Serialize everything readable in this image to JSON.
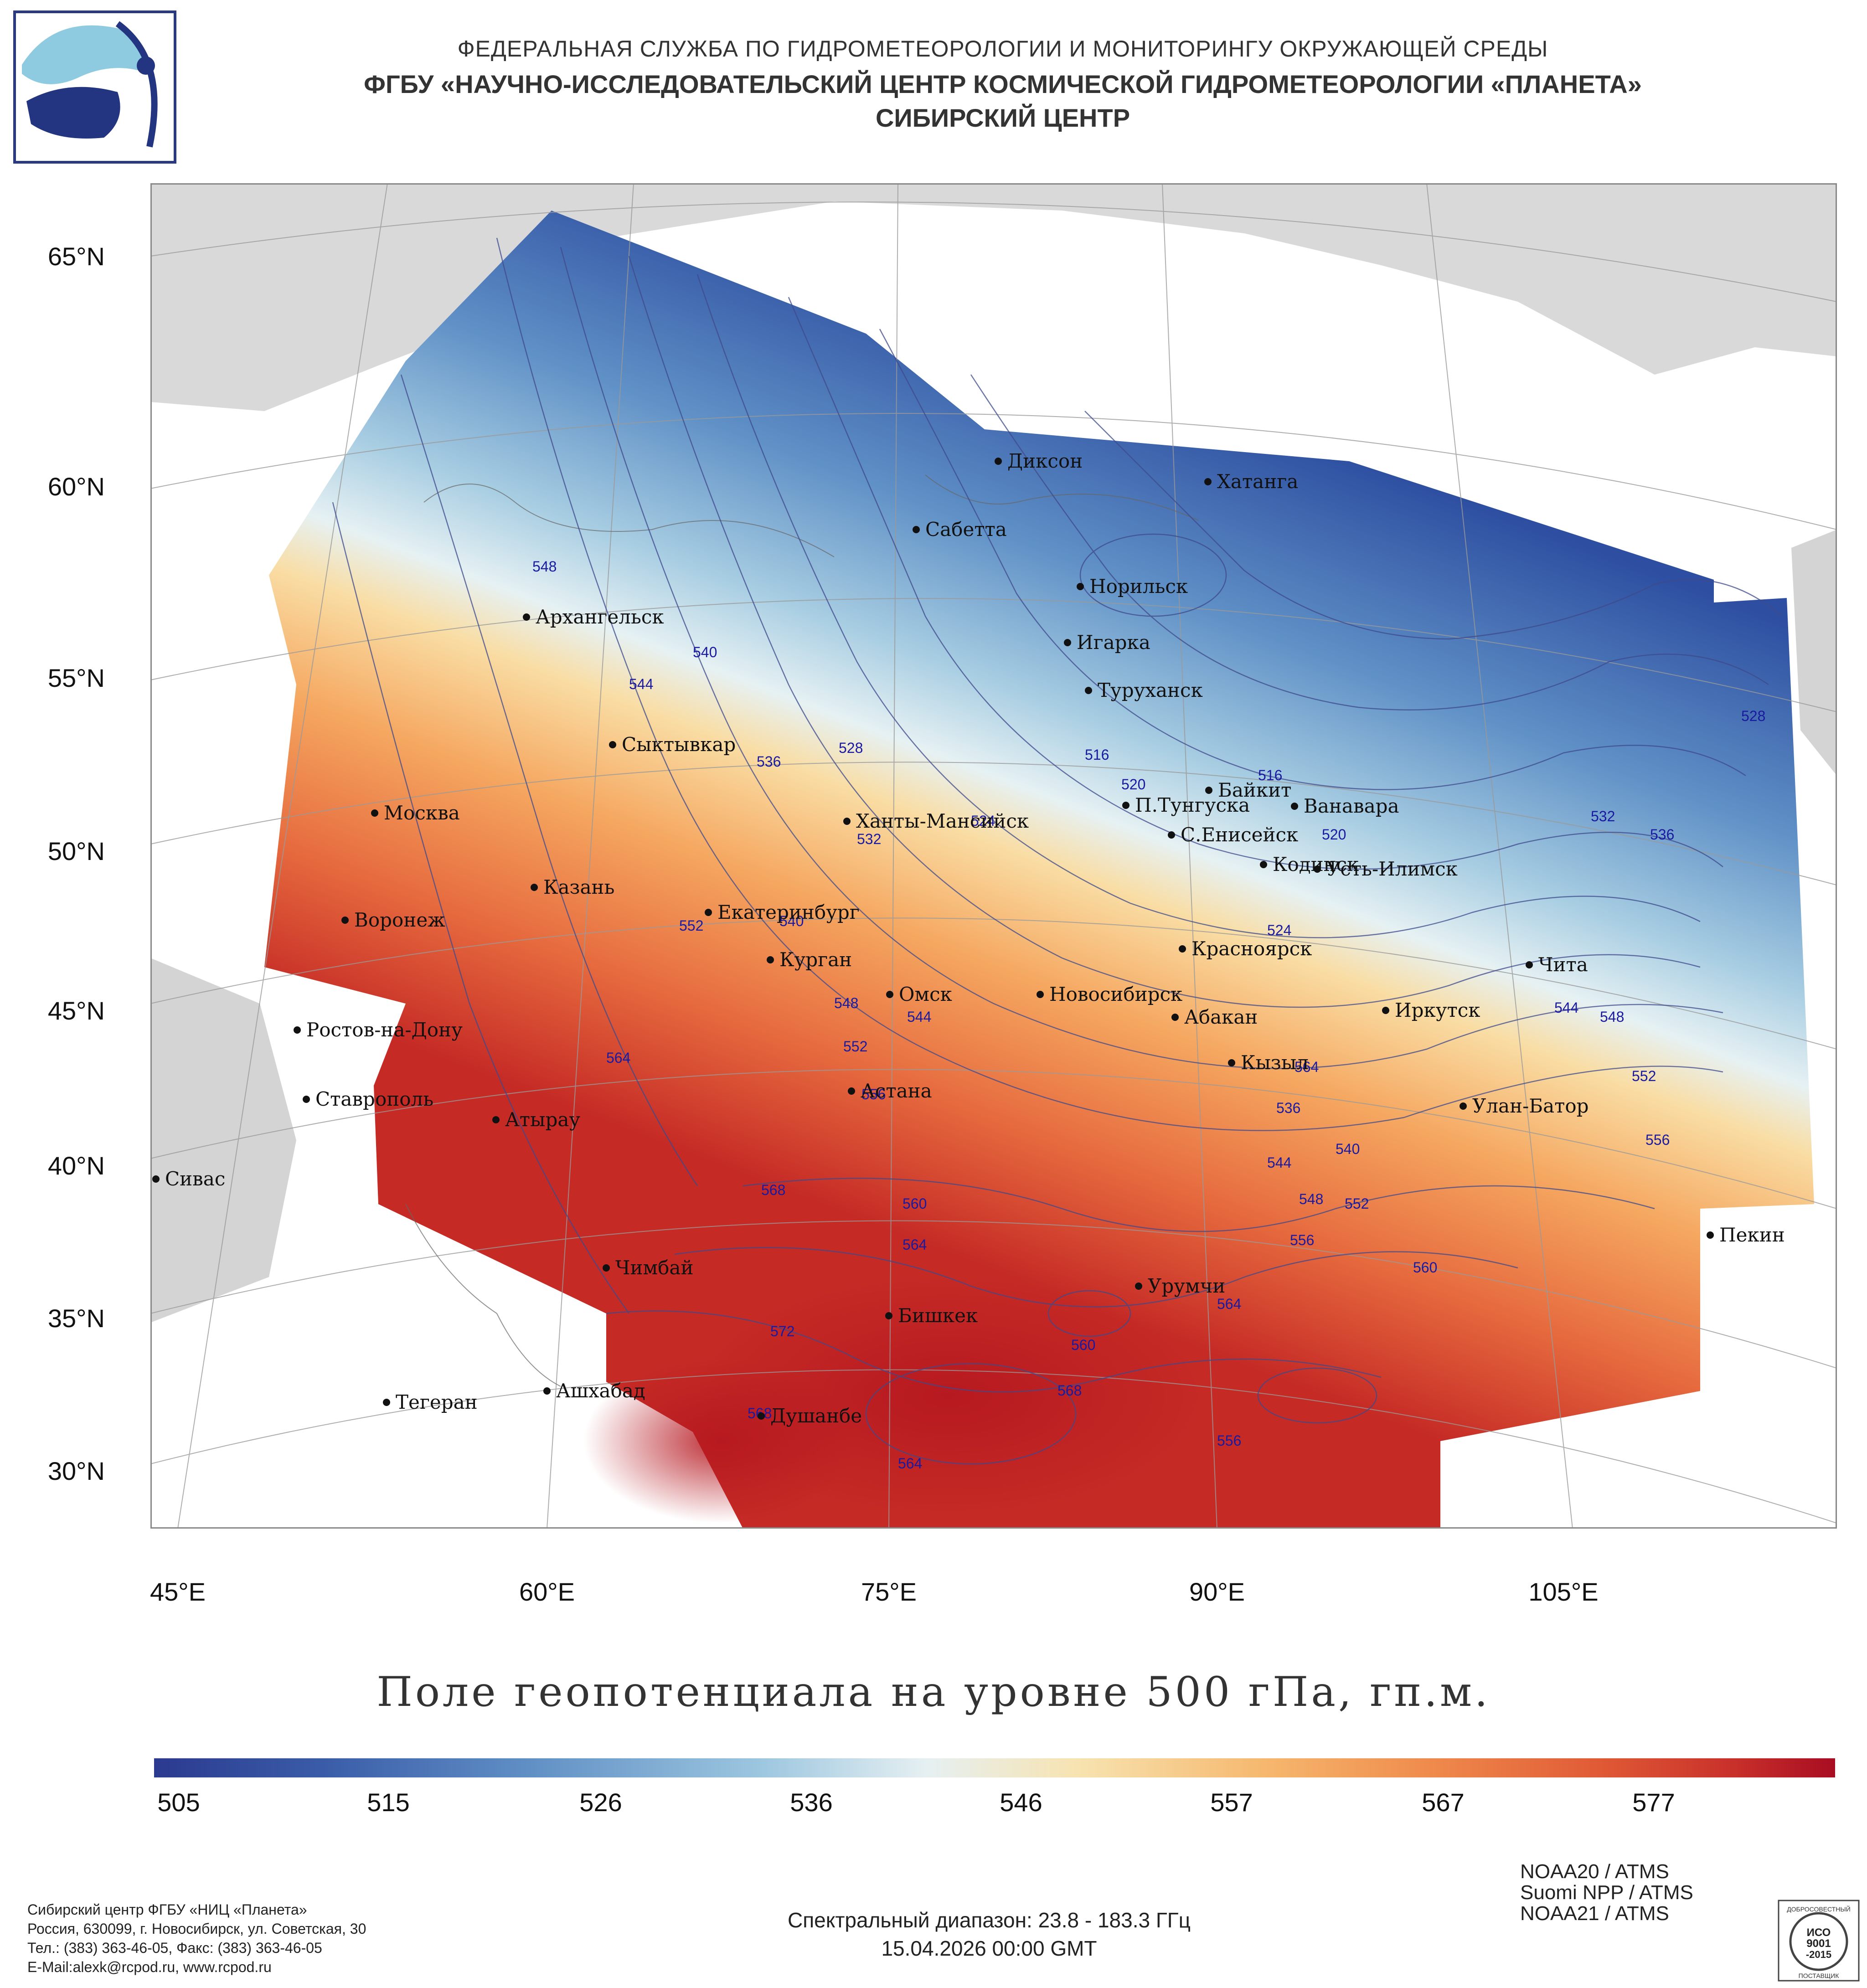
{
  "header": {
    "line1": "ФЕДЕРАЛЬНАЯ СЛУЖБА ПО ГИДРОМЕТЕОРОЛОГИИ И МОНИТОРИНГУ ОКРУЖАЮЩЕЙ СРЕДЫ",
    "line2": "ФГБУ «НАУЧНО-ИССЛЕДОВАТЕЛЬСКИЙ ЦЕНТР КОСМИЧЕСКОЙ ГИДРОМЕТЕОРОЛОГИИ «ПЛАНЕТА»",
    "line3": "СИБИРСКИЙ ЦЕНТР"
  },
  "map": {
    "lat_labels": [
      "65°N",
      "60°N",
      "55°N",
      "50°N",
      "45°N",
      "40°N",
      "35°N",
      "30°N"
    ],
    "lon_labels": [
      "45°E",
      "60°E",
      "75°E",
      "90°E",
      "105°E"
    ],
    "cities": [
      {
        "name": "Диксон"
      },
      {
        "name": "Хатанга"
      },
      {
        "name": "Сабетта"
      },
      {
        "name": "Норильск"
      },
      {
        "name": "Архангельск"
      },
      {
        "name": "Игарка"
      },
      {
        "name": "Туруханск"
      },
      {
        "name": "Сыктывкар"
      },
      {
        "name": "Байкит"
      },
      {
        "name": "П.Тунгуска"
      },
      {
        "name": "Ванавара"
      },
      {
        "name": "Москва"
      },
      {
        "name": "Ханты-Мансийск"
      },
      {
        "name": "С.Енисейск"
      },
      {
        "name": "Казань"
      },
      {
        "name": "Кодинск"
      },
      {
        "name": "Усть-Илимск"
      },
      {
        "name": "Воронеж"
      },
      {
        "name": "Екатеринбург"
      },
      {
        "name": "Красноярск"
      },
      {
        "name": "Курган"
      },
      {
        "name": "Чита"
      },
      {
        "name": "Омск"
      },
      {
        "name": "Новосибирск"
      },
      {
        "name": "Ростов-на-Дону"
      },
      {
        "name": "Абакан"
      },
      {
        "name": "Иркутск"
      },
      {
        "name": "Кызыл"
      },
      {
        "name": "Астана"
      },
      {
        "name": "Ставрополь"
      },
      {
        "name": "Улан-Батор"
      },
      {
        "name": "Атырау"
      },
      {
        "name": "Сивас"
      },
      {
        "name": "Пекин"
      },
      {
        "name": "Чимбай"
      },
      {
        "name": "Урумчи"
      },
      {
        "name": "Бишкек"
      },
      {
        "name": "Ашхабад"
      },
      {
        "name": "Тегеран"
      },
      {
        "name": "Душанбе"
      }
    ],
    "contour_labels": [
      "548",
      "540",
      "544",
      "536",
      "528",
      "516",
      "520",
      "524",
      "532",
      "516",
      "520",
      "528",
      "532",
      "536",
      "524",
      "552",
      "540",
      "548",
      "544",
      "552",
      "556",
      "564",
      "568",
      "560",
      "564",
      "572",
      "568",
      "564",
      "560",
      "564",
      "568",
      "556",
      "540",
      "544",
      "548",
      "552",
      "556",
      "548",
      "552",
      "556",
      "560",
      "564",
      "536",
      "544"
    ]
  },
  "title": "Поле геопотенциала на уровне 500 гПа, гп.м.",
  "colorbar": {
    "ticks": [
      "505",
      "515",
      "526",
      "536",
      "546",
      "557",
      "567",
      "577"
    ],
    "colors": [
      "#2b3a8f",
      "#3a5ca8",
      "#5f8ec4",
      "#9cc6df",
      "#e6f0f2",
      "#f7e3b0",
      "#f6b86e",
      "#ef8a4c",
      "#e05a35",
      "#c8302a",
      "#a80d22"
    ]
  },
  "satellites": [
    "NOAA20 / ATMS",
    "Suomi NPP / ATMS",
    "NOAA21 / ATMS"
  ],
  "footer": {
    "org1": "Сибирский центр ФГБУ «НИЦ «Планета»",
    "org2": "Россия, 630099, г. Новосибирск, ул. Советская, 30",
    "org3": "Тел.: (383) 363-46-05, Факс: (383) 363-46-05",
    "org4": "E-Mail:alexk@rcpod.ru, www.rcpod.ru",
    "spectral": "Спектральный диапазон: 23.8 - 183.3 ГГц",
    "datetime": "15.04.2026 00:00 GMT",
    "iso_top": "ДОБРОСОВЕСТНЫЙ",
    "iso_mid1": "ИСО",
    "iso_mid2": "9001",
    "iso_mid3": "-2015",
    "iso_bottom": "ПОСТАВЩИК"
  }
}
